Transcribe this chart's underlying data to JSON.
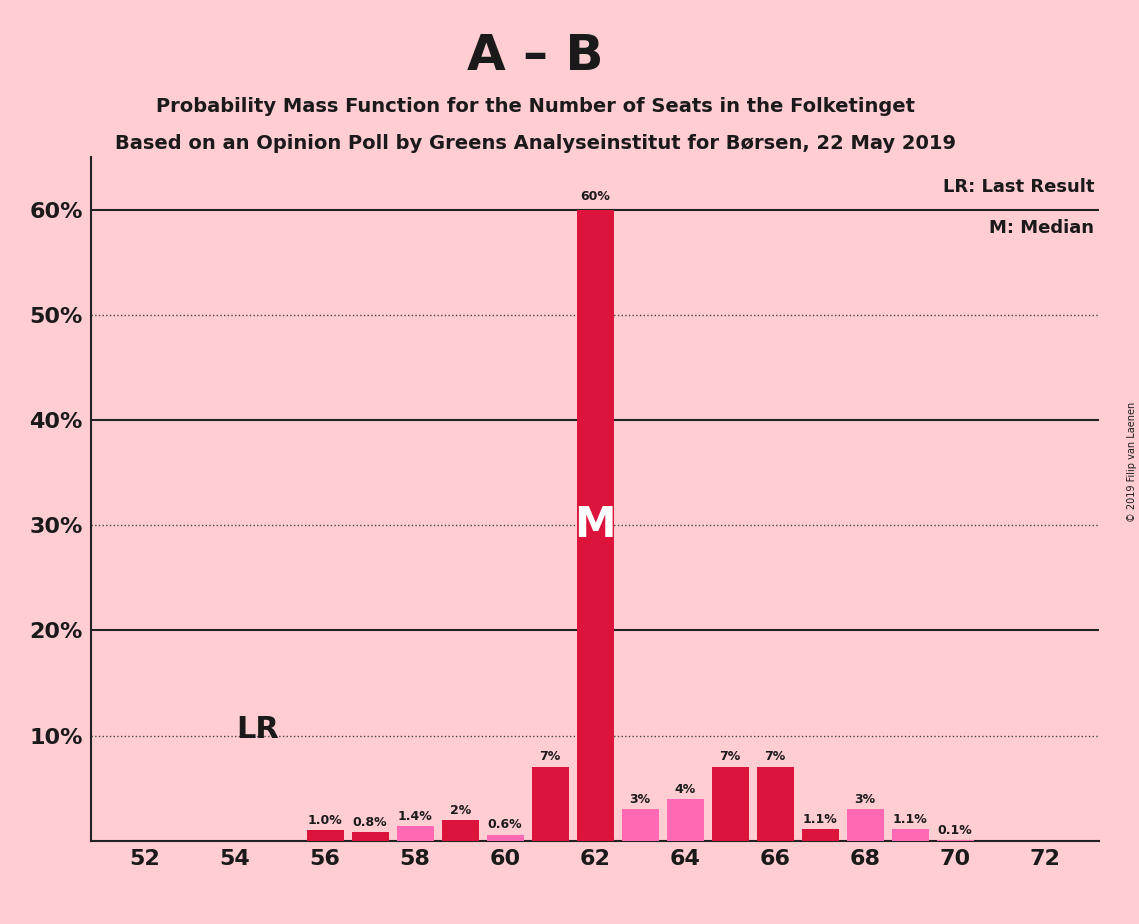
{
  "title": "A – B",
  "subtitle1": "Probability Mass Function for the Number of Seats in the Folketinget",
  "subtitle2": "Based on an Opinion Poll by Greens Analyseinstitut for Børsen, 22 May 2019",
  "copyright": "© 2019 Filip van Laenen",
  "seats": [
    52,
    53,
    54,
    55,
    56,
    57,
    58,
    59,
    60,
    61,
    62,
    63,
    64,
    65,
    66,
    67,
    68,
    69,
    70,
    71,
    72
  ],
  "values": [
    0.0,
    0.0,
    0.0,
    0.0,
    1.0,
    0.8,
    1.4,
    2.0,
    0.6,
    7.0,
    60.0,
    3.0,
    4.0,
    7.0,
    7.0,
    1.1,
    3.0,
    1.1,
    0.1,
    0.0,
    0.0
  ],
  "labels": [
    "0%",
    "0%",
    "0%",
    "0%",
    "1.0%",
    "0.8%",
    "1.4%",
    "2%",
    "0.6%",
    "7%",
    "60%",
    "3%",
    "4%",
    "7%",
    "7%",
    "1.1%",
    "3%",
    "1.1%",
    "0.1%",
    "0%",
    "0%"
  ],
  "show_label": [
    false,
    false,
    false,
    false,
    true,
    true,
    true,
    true,
    true,
    true,
    true,
    true,
    true,
    true,
    true,
    true,
    true,
    true,
    true,
    false,
    false
  ],
  "colors": [
    "#FF69B4",
    "#FF69B4",
    "#FF69B4",
    "#FF69B4",
    "#DC143C",
    "#DC143C",
    "#FF69B4",
    "#DC143C",
    "#FF69B4",
    "#DC143C",
    "#DC143C",
    "#FF69B4",
    "#FF69B4",
    "#DC143C",
    "#DC143C",
    "#DC143C",
    "#FF69B4",
    "#FF69B4",
    "#FF69B4",
    "#FF69B4",
    "#FF69B4"
  ],
  "median_seat": 62,
  "lr_seat": 55,
  "background_color": "#FFCDD2",
  "bar_pink": "#FF69B4",
  "bar_red": "#DC143C",
  "ylim": [
    0,
    65
  ],
  "yticks": [
    0,
    10,
    20,
    30,
    40,
    50,
    60
  ],
  "xticks": [
    52,
    54,
    56,
    58,
    60,
    62,
    64,
    66,
    68,
    70,
    72
  ],
  "legend_lr": "LR: Last Result",
  "legend_m": "M: Median",
  "solid_gridlines": [
    20,
    40,
    60
  ],
  "dotted_gridlines": [
    10,
    30,
    50
  ]
}
